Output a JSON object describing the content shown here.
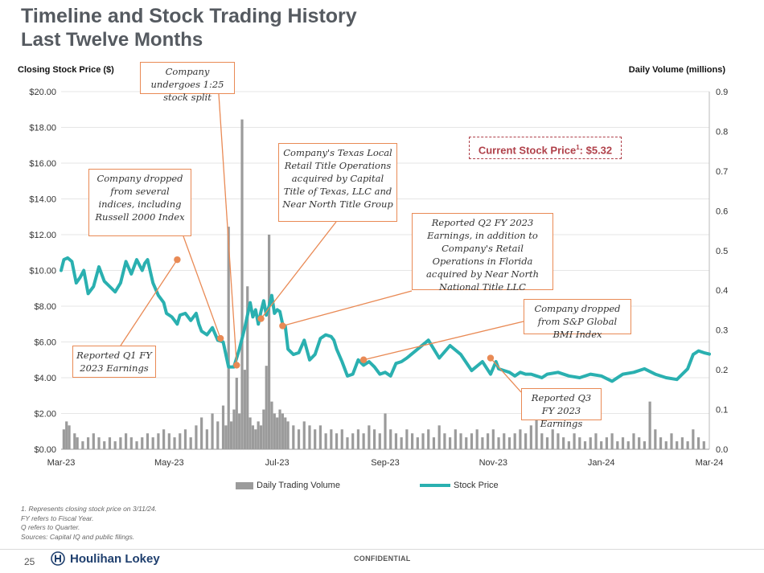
{
  "header": {
    "title": "Timeline and Stock Trading History",
    "subtitle": "Last Twelve Months"
  },
  "axes": {
    "left_title": "Closing Stock Price ($)",
    "right_title": "Daily Volume (millions)"
  },
  "current_price": {
    "label": "Current Stock Price",
    "superscript": "1",
    "value": ": $5.32"
  },
  "callouts": [
    {
      "id": "split",
      "text": "Company undergoes 1:25 stock split"
    },
    {
      "id": "indices",
      "text": "Company dropped from several indices, including Russell 2000 Index"
    },
    {
      "id": "q1",
      "text": "Reported Q1 FY 2023 Earnings"
    },
    {
      "id": "texas",
      "text": "Company's Texas Local Retail Title Operations acquired by Capital Title of Texas, LLC and Near North Title Group"
    },
    {
      "id": "q2",
      "text": "Reported Q2 FY 2023 Earnings, in addition to Company's Retail Operations in Florida acquired by Near North National Title LLC"
    },
    {
      "id": "bmi",
      "text": "Company dropped from S&P Global BMI Index"
    },
    {
      "id": "q3",
      "text": "Reported Q3 FY 2023 Earnings"
    }
  ],
  "legend": {
    "volume": "Daily Trading Volume",
    "price": "Stock Price"
  },
  "footnotes": [
    "1.  Represents closing stock price on 3/11/24.",
    "FY refers to Fiscal Year.",
    "Q refers to Quarter.",
    "Sources: Capital IQ and public filings."
  ],
  "footer": {
    "page_number": "25",
    "brand": "Houlihan Lokey",
    "confidential": "CONFIDENTIAL"
  },
  "colors": {
    "price_line": "#2ab0b0",
    "volume_bar": "#9b9b9b",
    "callout_border": "#e98a55",
    "marker": "#e98a55",
    "price_box": "#b0414a"
  },
  "chart_data": {
    "type": "line",
    "title": "Timeline and Stock Trading History",
    "xlabel": "",
    "ylabel": "Closing Stock Price ($)",
    "y2label": "Daily Volume (millions)",
    "x_range": [
      0,
      12
    ],
    "ylim": [
      0,
      20
    ],
    "y2lim": [
      0,
      0.9
    ],
    "yticks": [
      "$0.00",
      "$2.00",
      "$4.00",
      "$6.00",
      "$8.00",
      "$10.00",
      "$12.00",
      "$14.00",
      "$16.00",
      "$18.00",
      "$20.00"
    ],
    "yticks_values": [
      0,
      2,
      4,
      6,
      8,
      10,
      12,
      14,
      16,
      18,
      20
    ],
    "y2ticks": [
      "0.0",
      "0.1",
      "0.2",
      "0.3",
      "0.4",
      "0.5",
      "0.6",
      "0.7",
      "0.8",
      "0.9"
    ],
    "y2ticks_values": [
      0,
      0.1,
      0.2,
      0.3,
      0.4,
      0.5,
      0.6,
      0.7,
      0.8,
      0.9
    ],
    "xticks": [
      "Mar-23",
      "May-23",
      "Jul-23",
      "Sep-23",
      "Nov-23",
      "Jan-24",
      "Mar-24"
    ],
    "xticks_values": [
      0,
      2,
      4,
      6,
      8,
      10,
      12
    ],
    "series": [
      {
        "name": "Stock Price",
        "kind": "line",
        "x": [
          0,
          0.05,
          0.12,
          0.2,
          0.28,
          0.35,
          0.42,
          0.5,
          0.6,
          0.7,
          0.8,
          0.9,
          1.0,
          1.1,
          1.2,
          1.3,
          1.4,
          1.5,
          1.55,
          1.6,
          1.7,
          1.8,
          1.9,
          1.95,
          2.0,
          2.05,
          2.1,
          2.15,
          2.2,
          2.3,
          2.4,
          2.5,
          2.55,
          2.6,
          2.7,
          2.8,
          2.9,
          3.0,
          3.1,
          3.2,
          3.3,
          3.4,
          3.5,
          3.55,
          3.6,
          3.65,
          3.7,
          3.75,
          3.8,
          3.85,
          3.9,
          3.95,
          4.0,
          4.05,
          4.1,
          4.15,
          4.2,
          4.3,
          4.4,
          4.5,
          4.6,
          4.7,
          4.8,
          4.85,
          4.9,
          5.0,
          5.05,
          5.1,
          5.2,
          5.3,
          5.4,
          5.5,
          5.6,
          5.7,
          5.8,
          5.9,
          6.0,
          6.1,
          6.2,
          6.3,
          6.4,
          6.6,
          6.8,
          7.0,
          7.2,
          7.4,
          7.6,
          7.8,
          7.95,
          8.05,
          8.1,
          8.2,
          8.3,
          8.4,
          8.5,
          8.6,
          8.7,
          8.8,
          8.9,
          9.0,
          9.2,
          9.4,
          9.6,
          9.8,
          10.0,
          10.2,
          10.4,
          10.6,
          10.8,
          11.0,
          11.2,
          11.4,
          11.6,
          11.7,
          11.75,
          11.8,
          11.9,
          12.0
        ],
        "values": [
          10.0,
          10.6,
          10.7,
          10.5,
          9.3,
          9.6,
          10.0,
          8.7,
          9.1,
          10.2,
          9.4,
          9.1,
          8.8,
          9.3,
          10.5,
          9.8,
          10.6,
          10.0,
          10.4,
          10.6,
          9.3,
          8.6,
          8.2,
          7.6,
          7.5,
          7.4,
          7.2,
          7.0,
          7.5,
          7.6,
          7.2,
          7.6,
          7.0,
          6.6,
          6.4,
          6.8,
          6.1,
          6.0,
          4.6,
          4.6,
          5.6,
          6.8,
          8.2,
          7.4,
          7.8,
          7.0,
          7.7,
          8.3,
          7.5,
          8.0,
          8.6,
          7.6,
          7.8,
          7.7,
          7.0,
          6.9,
          5.6,
          5.3,
          5.4,
          6.1,
          5.0,
          5.3,
          6.2,
          6.3,
          6.4,
          6.3,
          6.1,
          5.6,
          4.9,
          4.1,
          4.2,
          5.0,
          4.7,
          4.9,
          4.6,
          4.2,
          4.3,
          4.1,
          4.8,
          4.9,
          5.1,
          5.6,
          6.1,
          5.1,
          5.8,
          5.3,
          4.4,
          4.9,
          4.2,
          4.9,
          4.5,
          4.4,
          4.3,
          4.1,
          4.3,
          4.2,
          4.2,
          4.1,
          4.0,
          4.2,
          4.3,
          4.1,
          4.0,
          4.2,
          4.1,
          3.8,
          4.2,
          4.3,
          4.5,
          4.2,
          4.0,
          3.9,
          4.5,
          5.3,
          5.4,
          5.5,
          5.4,
          5.32
        ]
      },
      {
        "name": "Daily Trading Volume",
        "kind": "bar",
        "x": [
          0.05,
          0.1,
          0.15,
          0.25,
          0.3,
          0.4,
          0.5,
          0.6,
          0.7,
          0.8,
          0.9,
          1.0,
          1.1,
          1.2,
          1.3,
          1.4,
          1.5,
          1.6,
          1.7,
          1.8,
          1.9,
          2.0,
          2.1,
          2.2,
          2.3,
          2.4,
          2.5,
          2.6,
          2.7,
          2.8,
          2.9,
          3.0,
          3.05,
          3.1,
          3.15,
          3.2,
          3.25,
          3.3,
          3.35,
          3.4,
          3.45,
          3.5,
          3.55,
          3.6,
          3.65,
          3.7,
          3.75,
          3.8,
          3.85,
          3.9,
          3.95,
          4.0,
          4.05,
          4.1,
          4.15,
          4.2,
          4.3,
          4.4,
          4.5,
          4.6,
          4.7,
          4.8,
          4.9,
          5.0,
          5.1,
          5.2,
          5.3,
          5.4,
          5.5,
          5.6,
          5.7,
          5.8,
          5.9,
          6.0,
          6.1,
          6.2,
          6.3,
          6.4,
          6.5,
          6.6,
          6.7,
          6.8,
          6.9,
          7.0,
          7.1,
          7.2,
          7.3,
          7.4,
          7.5,
          7.6,
          7.7,
          7.8,
          7.9,
          8.0,
          8.1,
          8.2,
          8.3,
          8.4,
          8.5,
          8.6,
          8.7,
          8.8,
          8.9,
          9.0,
          9.1,
          9.2,
          9.3,
          9.4,
          9.5,
          9.6,
          9.7,
          9.8,
          9.9,
          10.0,
          10.1,
          10.2,
          10.3,
          10.4,
          10.5,
          10.6,
          10.7,
          10.8,
          10.9,
          11.0,
          11.1,
          11.2,
          11.3,
          11.4,
          11.5,
          11.6,
          11.7,
          11.8,
          11.9
        ],
        "values": [
          0.05,
          0.07,
          0.06,
          0.04,
          0.03,
          0.02,
          0.03,
          0.04,
          0.03,
          0.02,
          0.03,
          0.02,
          0.03,
          0.04,
          0.03,
          0.02,
          0.03,
          0.04,
          0.03,
          0.04,
          0.05,
          0.04,
          0.03,
          0.04,
          0.05,
          0.03,
          0.06,
          0.08,
          0.05,
          0.09,
          0.07,
          0.11,
          0.06,
          0.56,
          0.07,
          0.1,
          0.18,
          0.09,
          0.83,
          0.2,
          0.41,
          0.08,
          0.06,
          0.05,
          0.07,
          0.06,
          0.1,
          0.21,
          0.54,
          0.12,
          0.09,
          0.08,
          0.1,
          0.09,
          0.08,
          0.07,
          0.06,
          0.05,
          0.07,
          0.06,
          0.05,
          0.06,
          0.04,
          0.05,
          0.04,
          0.05,
          0.03,
          0.04,
          0.05,
          0.04,
          0.06,
          0.05,
          0.04,
          0.09,
          0.05,
          0.04,
          0.03,
          0.05,
          0.04,
          0.03,
          0.04,
          0.05,
          0.03,
          0.06,
          0.04,
          0.03,
          0.05,
          0.04,
          0.03,
          0.04,
          0.05,
          0.03,
          0.04,
          0.05,
          0.03,
          0.04,
          0.03,
          0.04,
          0.05,
          0.04,
          0.06,
          0.09,
          0.04,
          0.03,
          0.05,
          0.04,
          0.03,
          0.02,
          0.04,
          0.03,
          0.02,
          0.03,
          0.04,
          0.02,
          0.03,
          0.04,
          0.02,
          0.03,
          0.02,
          0.04,
          0.03,
          0.02,
          0.12,
          0.05,
          0.03,
          0.02,
          0.04,
          0.02,
          0.03,
          0.02,
          0.05,
          0.03,
          0.02
        ]
      }
    ],
    "event_markers": [
      {
        "x": 2.15,
        "y": 10.6,
        "label": "Reported Q1 FY 2023 Earnings"
      },
      {
        "x": 2.95,
        "y": 6.2,
        "label": "Company dropped from several indices, including Russell 2000 Index"
      },
      {
        "x": 3.25,
        "y": 4.7,
        "label": "Company undergoes 1:25 stock split"
      },
      {
        "x": 3.7,
        "y": 7.3,
        "label": "Company's Texas Local Retail Title Operations acquired by Capital Title of Texas, LLC and Near North Title Group"
      },
      {
        "x": 4.1,
        "y": 6.9,
        "label": "Reported Q2 FY 2023 Earnings, in addition to Company's Retail Operations in Florida acquired by Near North National Title LLC"
      },
      {
        "x": 5.6,
        "y": 5.0,
        "label": "Company dropped from S&P Global BMI Index"
      },
      {
        "x": 7.95,
        "y": 5.1,
        "label": "Reported Q3 FY 2023 Earnings"
      }
    ],
    "legend_position": "bottom-center"
  }
}
